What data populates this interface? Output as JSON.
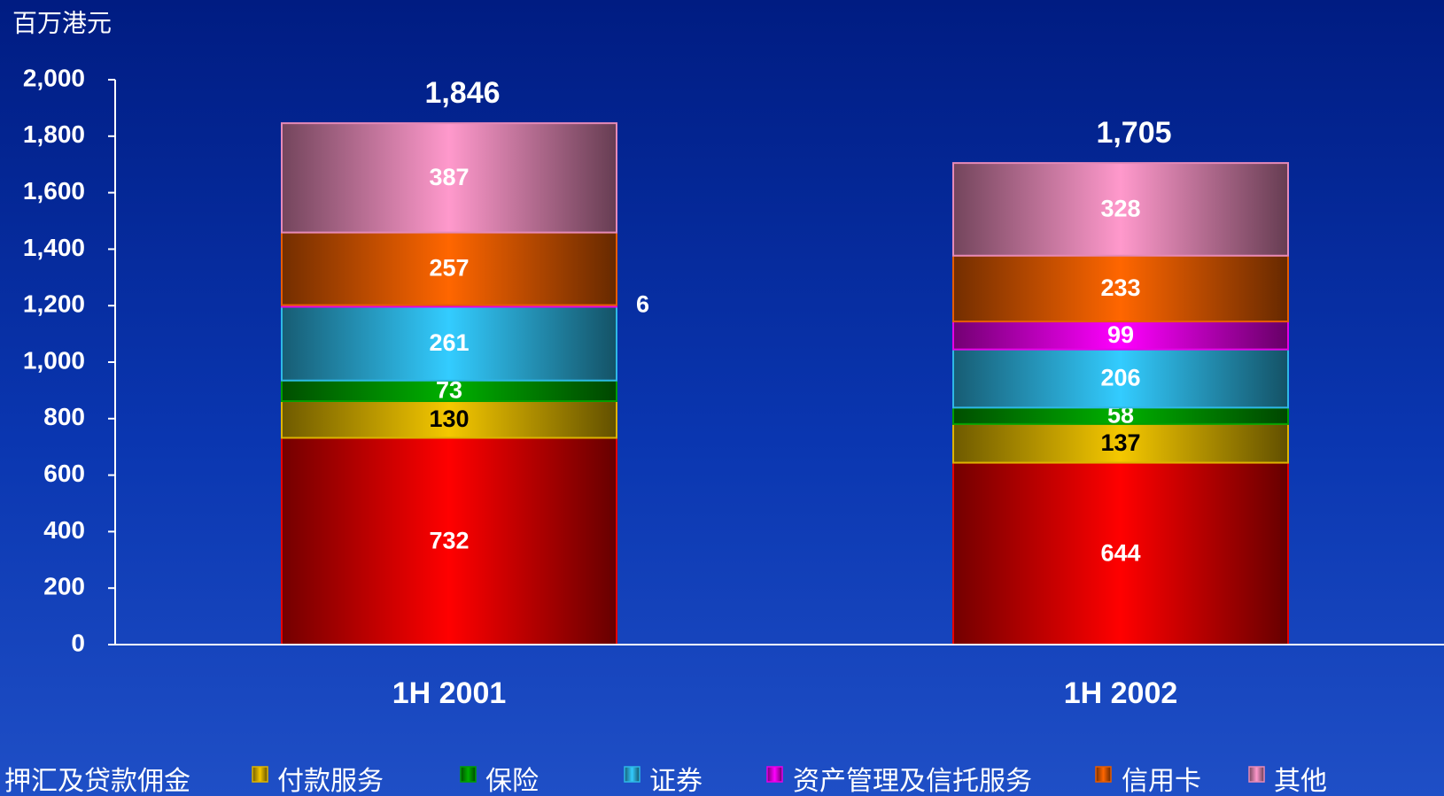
{
  "chart_data": {
    "type": "stacked_bar",
    "y_label": "百万港元",
    "categories": [
      "1H 2001",
      "1H 2002"
    ],
    "series": [
      {
        "name": "押汇及贷款佣金",
        "color": "#ff0000",
        "label_color": "#ffffff",
        "values": [
          732,
          644
        ]
      },
      {
        "name": "付款服务",
        "color": "#f5c800",
        "label_color": "#000000",
        "values": [
          130,
          137
        ]
      },
      {
        "name": "保险",
        "color": "#00b000",
        "label_color": "#ffffff",
        "values": [
          73,
          58
        ]
      },
      {
        "name": "证券",
        "color": "#33ccff",
        "label_color": "#ffffff",
        "values": [
          261,
          206
        ]
      },
      {
        "name": "资产管理及信托服务",
        "color": "#ff00ff",
        "label_color": "#ffffff",
        "values": [
          6,
          99
        ]
      },
      {
        "name": "信用卡",
        "color": "#ff6600",
        "label_color": "#ffffff",
        "values": [
          257,
          233
        ]
      },
      {
        "name": "其他",
        "color": "#ff99cc",
        "label_color": "#ffffff",
        "values": [
          387,
          328
        ]
      }
    ],
    "totals": [
      1846,
      1705
    ],
    "totals_labels": [
      "1,846",
      "1,705"
    ],
    "ylim": [
      0,
      2000
    ],
    "yticks": [
      0,
      200,
      400,
      600,
      800,
      {
        "value": 1000,
        "label": "1,000"
      },
      {
        "value": 1200,
        "label": "1,200"
      },
      {
        "value": 1400,
        "label": "1,400"
      },
      {
        "value": 1600,
        "label": "1,600"
      },
      {
        "value": 1800,
        "label": "1,800"
      },
      {
        "value": 2000,
        "label": "2,000"
      }
    ]
  }
}
